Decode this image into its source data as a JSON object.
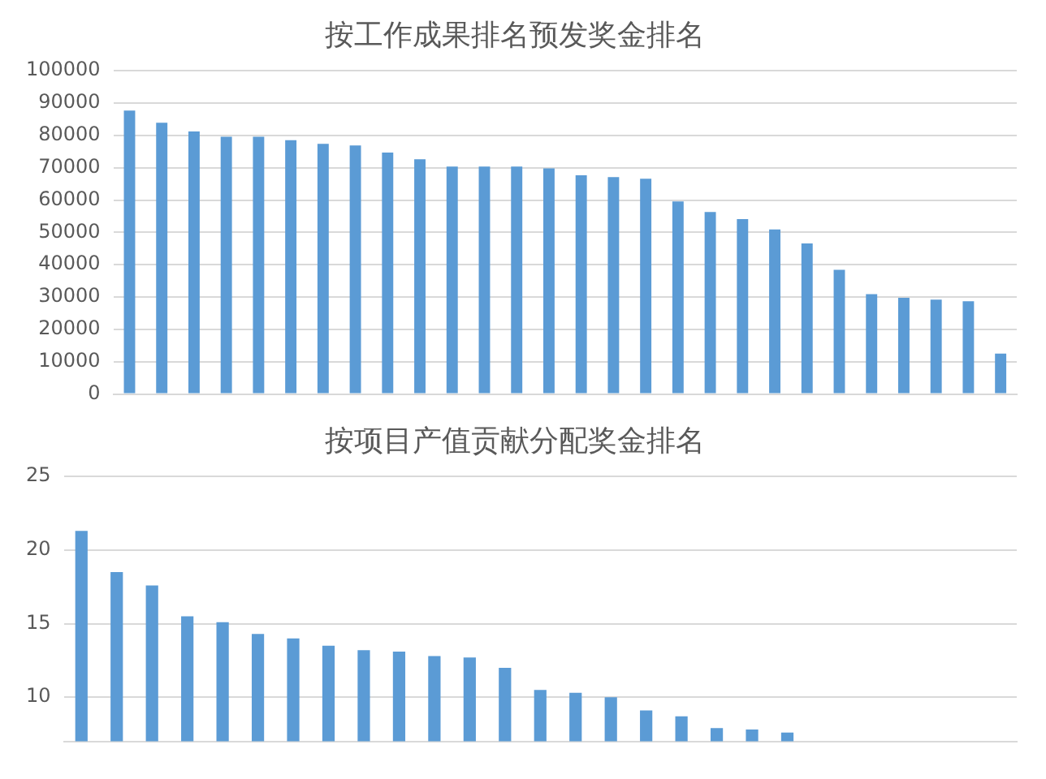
{
  "chart_data": [
    {
      "type": "bar",
      "title": "按工作成果排名预发奖金排名",
      "categories": [
        null,
        null,
        null,
        null,
        null,
        null,
        null,
        null,
        null,
        null,
        null,
        null,
        null,
        null,
        null,
        null,
        null,
        null,
        null,
        null,
        null,
        null,
        null,
        null,
        null,
        null,
        null,
        null
      ],
      "values": [
        87700,
        83900,
        81200,
        79600,
        79600,
        78500,
        77400,
        76900,
        74700,
        72600,
        70400,
        70400,
        70400,
        69800,
        67700,
        67100,
        66600,
        59600,
        56300,
        54100,
        50900,
        46600,
        38400,
        30900,
        29800,
        29200,
        28700,
        12500
      ],
      "color": "#5b9bd5",
      "ylim": [
        0,
        100000
      ],
      "yticks": [
        0,
        10000,
        20000,
        30000,
        40000,
        50000,
        60000,
        70000,
        80000,
        90000,
        100000
      ],
      "grid": "y",
      "legend": false,
      "tick_labels": "y"
    },
    {
      "type": "bar",
      "title": "按项目产值贡献分配奖金排名",
      "categories": [
        null,
        null,
        null,
        null,
        null,
        null,
        null,
        null,
        null,
        null,
        null,
        null,
        null,
        null,
        null,
        null,
        null,
        null,
        null,
        null,
        null,
        null,
        null,
        null,
        null,
        null,
        null
      ],
      "values": [
        21.3,
        18.5,
        17.6,
        15.5,
        15.1,
        14.3,
        14.0,
        13.5,
        13.2,
        13.1,
        12.8,
        12.7,
        12.0,
        10.5,
        10.3,
        10.0,
        9.1,
        8.7,
        7.9,
        7.8,
        7.6,
        null,
        null,
        null,
        null,
        null,
        null
      ],
      "color": "#5b9bd5",
      "ylim": [
        7,
        25
      ],
      "yticks": [
        10,
        15,
        20,
        25
      ],
      "grid": "y",
      "legend": false,
      "tick_labels": "y"
    }
  ]
}
